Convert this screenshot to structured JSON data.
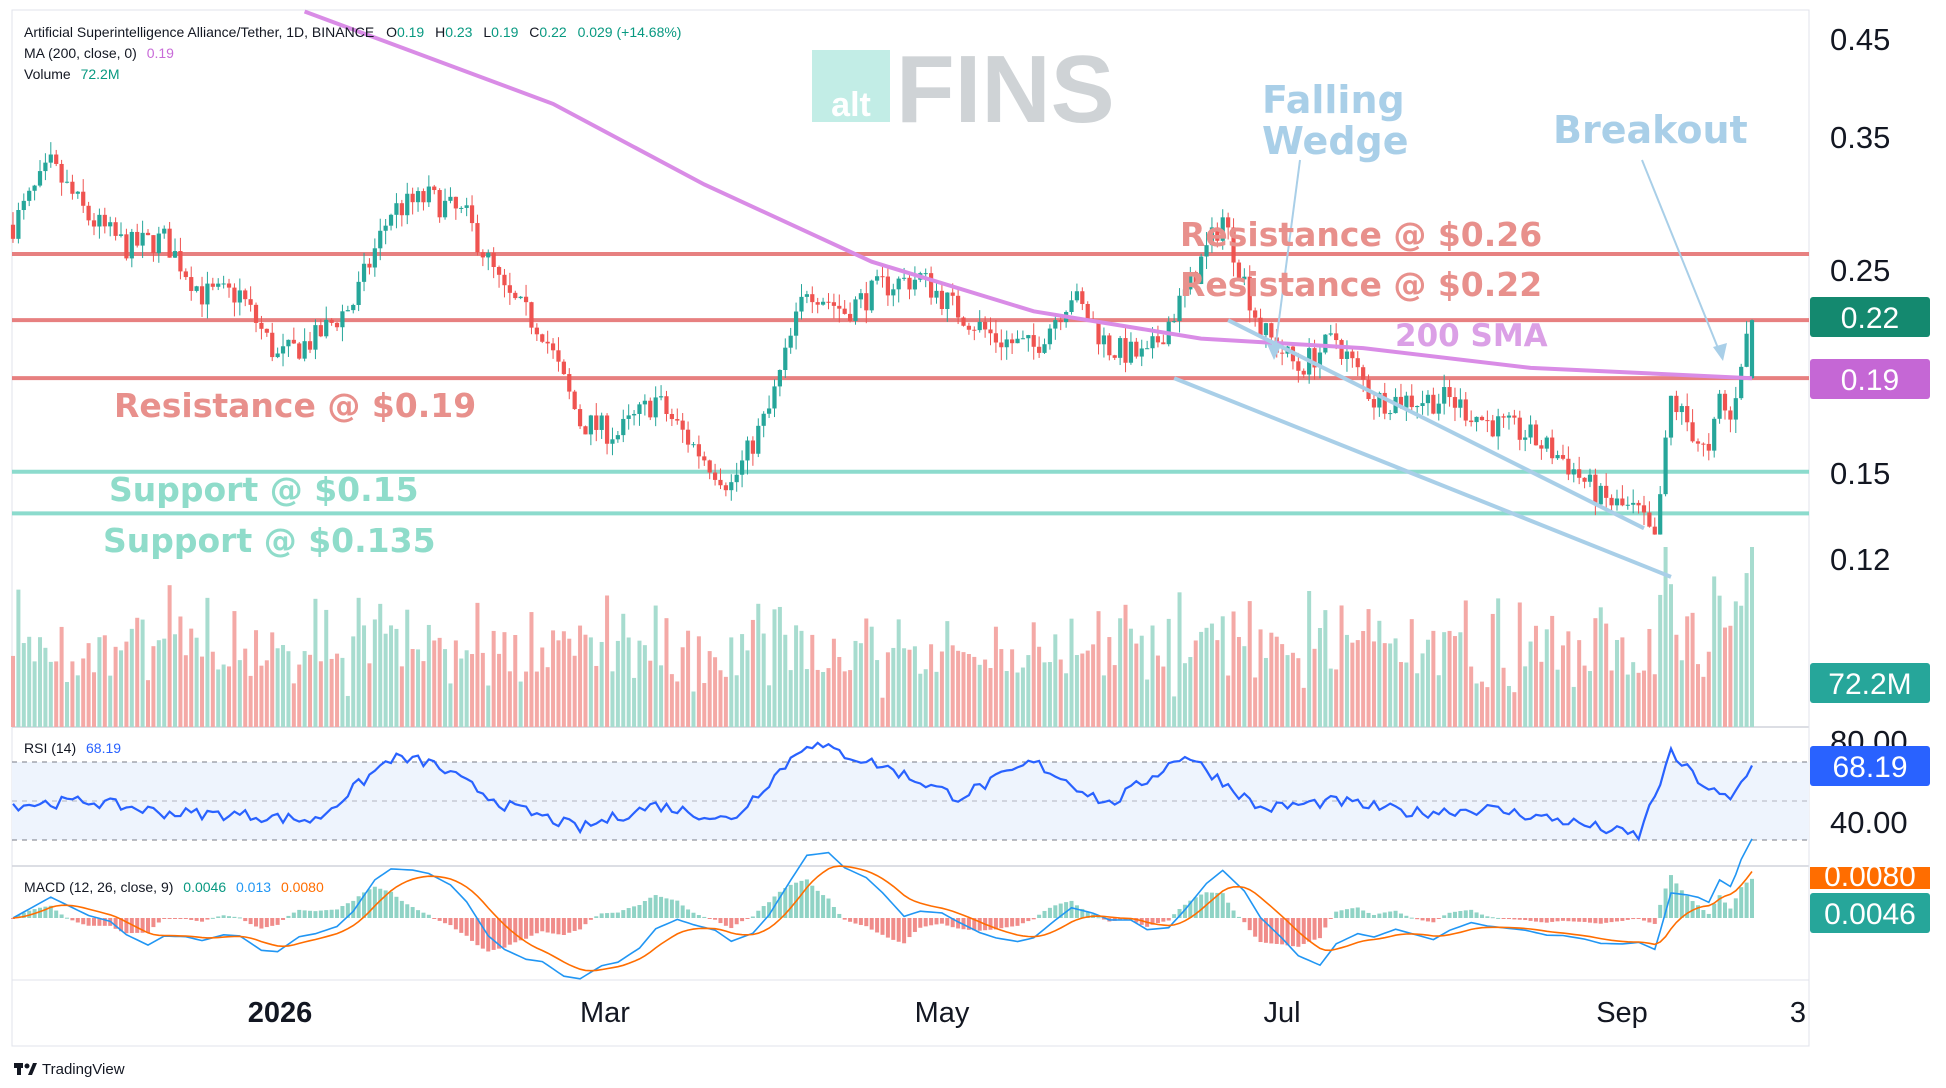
{
  "header": {
    "symbol": "Artificial Superintelligence Alliance/Tether, 1D, BINANCE",
    "o_label": "O",
    "o": "0.19",
    "h_label": "H",
    "h": "0.23",
    "l_label": "L",
    "l": "0.19",
    "c_label": "C",
    "c": "0.22",
    "change": "0.029 (+14.68%)",
    "ma_label": "MA (200, close, 0)",
    "ma_value": "0.19",
    "volume_label": "Volume",
    "volume_value": "72.2M"
  },
  "watermark": {
    "prefix": "alt",
    "name": "FINS"
  },
  "annotations": {
    "res_026": "Resistance @ $0.26",
    "res_022": "Resistance @ $0.22",
    "res_019": "Resistance @ $0.19",
    "sup_015": "Support @ $0.15",
    "sup_0135": "Support @ $0.135",
    "sma": "200 SMA",
    "wedge_1": "Falling",
    "wedge_2": "Wedge",
    "breakout": "Breakout"
  },
  "price_axis": {
    "ticks": [
      "0.45",
      "0.35",
      "0.25",
      "0.15",
      "0.12"
    ],
    "tag_price": "0.22",
    "tag_ma": "0.19",
    "tag_volume": "72.2M"
  },
  "rsi": {
    "label": "RSI (14)",
    "value": "68.19",
    "axis_top": "80.00",
    "axis_mid": "40.00"
  },
  "macd": {
    "label": "MACD (12, 26, close, 9)",
    "v1": "0.0046",
    "v2": "0.013",
    "v3": "0.0080",
    "tag_top": "0.0080",
    "tag_bottom": "0.0046"
  },
  "time_axis": {
    "labels": [
      "2026",
      "Mar",
      "May",
      "Jul",
      "Sep",
      "3"
    ]
  },
  "footer": {
    "brand": "TradingView"
  },
  "colors": {
    "up": "#26a69a",
    "down": "#ef5350",
    "resistance": "#e57373",
    "support": "#80d8c8",
    "sma": "#d98ce6",
    "wedge": "#a9cfe8",
    "rsi": "#2962ff",
    "macd": "#2196f3",
    "signal": "#ff6d00"
  },
  "chart_data": [
    {
      "type": "candlestick",
      "title": "Artificial Superintelligence Alliance/Tether, 1D, BINANCE",
      "x_range": [
        "2025-11-07",
        "2026-09-25"
      ],
      "y_scale": "log",
      "ylim": [
        0.108,
        0.48
      ],
      "y_ticks": [
        0.45,
        0.35,
        0.25,
        0.15,
        0.12
      ],
      "x_ticks": [
        "2026",
        "Mar",
        "May",
        "Jul",
        "Sep",
        "3"
      ],
      "last": {
        "open": 0.19,
        "high": 0.23,
        "low": 0.19,
        "close": 0.22,
        "change": 0.029,
        "change_pct": 14.68
      },
      "close_path": [
        [
          "2025-11-07",
          0.28
        ],
        [
          "2025-11-14",
          0.325
        ],
        [
          "2025-11-21",
          0.285
        ],
        [
          "2025-11-28",
          0.265
        ],
        [
          "2025-12-05",
          0.27
        ],
        [
          "2025-12-12",
          0.235
        ],
        [
          "2025-12-19",
          0.235
        ],
        [
          "2025-12-26",
          0.2
        ],
        [
          "2026-01-02",
          0.21
        ],
        [
          "2026-01-09",
          0.23
        ],
        [
          "2026-01-16",
          0.29
        ],
        [
          "2026-01-23",
          0.3
        ],
        [
          "2026-01-30",
          0.285
        ],
        [
          "2026-02-06",
          0.235
        ],
        [
          "2026-02-13",
          0.215
        ],
        [
          "2026-02-20",
          0.17
        ],
        [
          "2026-02-27",
          0.165
        ],
        [
          "2026-03-06",
          0.18
        ],
        [
          "2026-03-13",
          0.16
        ],
        [
          "2026-03-20",
          0.145
        ],
        [
          "2026-03-27",
          0.175
        ],
        [
          "2026-04-03",
          0.24
        ],
        [
          "2026-04-10",
          0.225
        ],
        [
          "2026-04-17",
          0.24
        ],
        [
          "2026-04-24",
          0.245
        ],
        [
          "2026-05-01",
          0.225
        ],
        [
          "2026-05-08",
          0.21
        ],
        [
          "2026-05-15",
          0.205
        ],
        [
          "2026-05-22",
          0.235
        ],
        [
          "2026-05-29",
          0.205
        ],
        [
          "2026-06-05",
          0.2
        ],
        [
          "2026-06-12",
          0.235
        ],
        [
          "2026-06-19",
          0.285
        ],
        [
          "2026-06-26",
          0.215
        ],
        [
          "2026-07-03",
          0.195
        ],
        [
          "2026-07-10",
          0.21
        ],
        [
          "2026-07-17",
          0.18
        ],
        [
          "2026-07-24",
          0.18
        ],
        [
          "2026-07-31",
          0.18
        ],
        [
          "2026-08-07",
          0.17
        ],
        [
          "2026-08-14",
          0.165
        ],
        [
          "2026-08-21",
          0.155
        ],
        [
          "2026-08-28",
          0.14
        ],
        [
          "2026-09-04",
          0.135
        ],
        [
          "2026-09-07",
          0.125
        ],
        [
          "2026-09-10",
          0.18
        ],
        [
          "2026-09-13",
          0.17
        ],
        [
          "2026-09-17",
          0.155
        ],
        [
          "2026-09-19",
          0.18
        ],
        [
          "2026-09-21",
          0.17
        ],
        [
          "2026-09-23",
          0.2
        ],
        [
          "2026-09-25",
          0.22
        ]
      ],
      "lines": [
        {
          "label": "Resistance @ $0.26",
          "value": 0.26
        },
        {
          "label": "Resistance @ $0.22",
          "value": 0.22
        },
        {
          "label": "Resistance @ $0.19",
          "value": 0.19
        },
        {
          "label": "Support @ $0.15",
          "value": 0.15
        },
        {
          "label": "Support @ $0.135",
          "value": 0.135
        }
      ],
      "sma_200": [
        [
          "2025-12-31",
          0.48
        ],
        [
          "2026-02-15",
          0.38
        ],
        [
          "2026-03-15",
          0.31
        ],
        [
          "2026-04-15",
          0.255
        ],
        [
          "2026-05-15",
          0.225
        ],
        [
          "2026-06-15",
          0.21
        ],
        [
          "2026-07-15",
          0.205
        ],
        [
          "2026-08-15",
          0.195
        ],
        [
          "2026-09-25",
          0.19
        ]
      ],
      "wedge_lines": [
        [
          [
            "2026-06-20",
            0.22
          ],
          [
            "2026-09-05",
            0.13
          ]
        ],
        [
          [
            "2026-06-10",
            0.19
          ],
          [
            "2026-09-10",
            0.115
          ]
        ]
      ]
    },
    {
      "type": "bar",
      "title": "Volume",
      "last_value": "72.2M"
    },
    {
      "type": "line",
      "title": "RSI (14)",
      "ylim": [
        0,
        100
      ],
      "y_ticks": [
        80,
        40
      ],
      "last_value": 68.19,
      "values": [
        [
          "2025-11-07",
          48
        ],
        [
          "2025-11-21",
          50
        ],
        [
          "2025-12-05",
          44
        ],
        [
          "2025-12-19",
          43
        ],
        [
          "2026-01-02",
          40
        ],
        [
          "2026-01-16",
          72
        ],
        [
          "2026-01-23",
          70
        ],
        [
          "2026-02-06",
          48
        ],
        [
          "2026-02-20",
          36
        ],
        [
          "2026-03-06",
          48
        ],
        [
          "2026-03-20",
          40
        ],
        [
          "2026-04-03",
          80
        ],
        [
          "2026-04-17",
          68
        ],
        [
          "2026-05-01",
          52
        ],
        [
          "2026-05-15",
          70
        ],
        [
          "2026-05-29",
          48
        ],
        [
          "2026-06-12",
          74
        ],
        [
          "2026-06-26",
          46
        ],
        [
          "2026-07-10",
          50
        ],
        [
          "2026-07-24",
          44
        ],
        [
          "2026-08-07",
          46
        ],
        [
          "2026-08-21",
          40
        ],
        [
          "2026-09-04",
          32
        ],
        [
          "2026-09-10",
          74
        ],
        [
          "2026-09-17",
          56
        ],
        [
          "2026-09-21",
          50
        ],
        [
          "2026-09-25",
          68.19
        ]
      ]
    },
    {
      "type": "line",
      "title": "MACD (12, 26, close, 9)",
      "series": [
        {
          "name": "MACD",
          "last_value": 0.0046
        },
        {
          "name": "Signal",
          "last_value": 0.008
        }
      ],
      "histogram_last": 0.013
    }
  ]
}
